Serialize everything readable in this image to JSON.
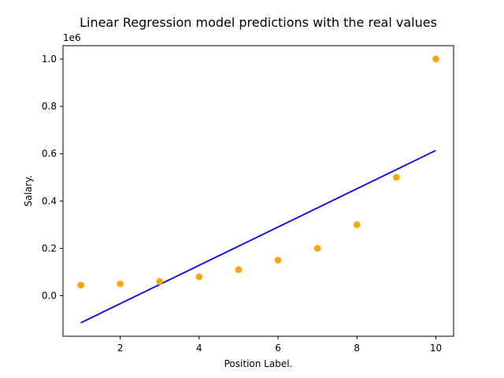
{
  "chart_data": {
    "type": "scatter",
    "title": "Linear Regression model predictions with the real values",
    "xlabel": "Position Label.",
    "ylabel": "Salary.",
    "y_offset_label": "1e6",
    "xlim": [
      0.55,
      10.45
    ],
    "ylim": [
      -0.1713,
      1.0564
    ],
    "x_ticks": [
      2,
      4,
      6,
      8,
      10
    ],
    "x_tick_labels": [
      "2",
      "4",
      "6",
      "8",
      "10"
    ],
    "y_ticks": [
      0.0,
      0.2,
      0.4,
      0.6,
      0.8,
      1.0
    ],
    "y_tick_labels": [
      "0.0",
      "0.2",
      "0.4",
      "0.6",
      "0.8",
      "1.0"
    ],
    "grid": false,
    "series": [
      {
        "kind": "scatter",
        "color": "#ffa500",
        "x": [
          1,
          2,
          3,
          4,
          5,
          6,
          7,
          8,
          9,
          10
        ],
        "y": [
          0.045,
          0.05,
          0.06,
          0.08,
          0.11,
          0.15,
          0.2,
          0.3,
          0.5,
          1.0
        ]
      },
      {
        "kind": "line",
        "color": "#0000ff",
        "x": [
          1,
          10
        ],
        "y": [
          -0.1145,
          0.6139
        ]
      }
    ]
  }
}
